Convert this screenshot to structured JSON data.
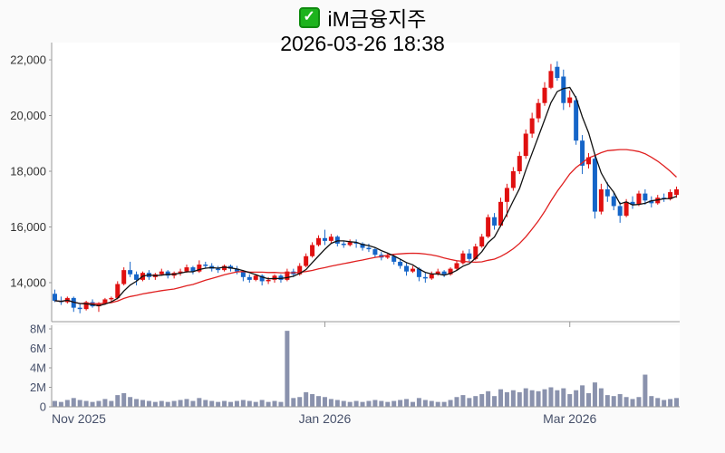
{
  "chart_data": {
    "type": "candlestick+volume",
    "title": "iM금융지주",
    "datetime": "2026-03-26 18:38",
    "legend": {
      "checkbox_state": "checked"
    },
    "colors": {
      "up_candle": "#e01010",
      "down_candle": "#1565c8",
      "volume_bar": "#8a92ad",
      "ma_short": "#111111",
      "ma_long": "#e02020",
      "axis_line": "#999999",
      "price_label": "#333333",
      "time_label": "#46506a",
      "plot_bg": "#ffffff",
      "page_bg": "#fafafa",
      "checkbox_green": "#1db31d"
    },
    "price_axis": {
      "min": 12600,
      "max": 22620,
      "ticks": [
        {
          "v": 22000,
          "label": "22,000"
        },
        {
          "v": 20000,
          "label": "20,000"
        },
        {
          "v": 18000,
          "label": "18,000"
        },
        {
          "v": 16000,
          "label": "16,000"
        },
        {
          "v": 14000,
          "label": "14,000"
        }
      ]
    },
    "volume_axis": {
      "max_millions": 8,
      "ticks": [
        {
          "v": 8,
          "label": "8M"
        },
        {
          "v": 6,
          "label": "6M"
        },
        {
          "v": 4,
          "label": "4M"
        },
        {
          "v": 2,
          "label": "2M"
        },
        {
          "v": 0,
          "label": "0"
        }
      ]
    },
    "x_ticks": [
      {
        "label": "Nov 2025",
        "index": 0,
        "anchor": "start"
      },
      {
        "label": "Jan 2026",
        "index": 43,
        "anchor": "middle"
      },
      {
        "label": "Mar 2026",
        "index": 82,
        "anchor": "middle"
      }
    ],
    "ma_short_period": 5,
    "ma_long_period": 20,
    "candles_format": [
      "open",
      "high",
      "low",
      "close",
      "volume_millions"
    ],
    "candles": [
      [
        13600,
        13750,
        13300,
        13350,
        0.6
      ],
      [
        13350,
        13500,
        13200,
        13300,
        0.5
      ],
      [
        13300,
        13500,
        13250,
        13450,
        0.7
      ],
      [
        13450,
        13500,
        12950,
        13100,
        0.9
      ],
      [
        13100,
        13250,
        12900,
        13050,
        0.7
      ],
      [
        13050,
        13350,
        13000,
        13300,
        0.6
      ],
      [
        13300,
        13400,
        13100,
        13150,
        0.5
      ],
      [
        13150,
        13300,
        12950,
        13250,
        0.6
      ],
      [
        13250,
        13450,
        13200,
        13400,
        0.8
      ],
      [
        13400,
        13500,
        13300,
        13450,
        0.6
      ],
      [
        13450,
        14050,
        13400,
        13950,
        1.2
      ],
      [
        13950,
        14550,
        13900,
        14450,
        1.4
      ],
      [
        14450,
        14750,
        14200,
        14300,
        1.0
      ],
      [
        14300,
        14400,
        13900,
        14100,
        0.8
      ],
      [
        14100,
        14400,
        14050,
        14350,
        0.7
      ],
      [
        14350,
        14450,
        14100,
        14200,
        0.6
      ],
      [
        14200,
        14350,
        14100,
        14300,
        0.5
      ],
      [
        14300,
        14500,
        14250,
        14400,
        0.6
      ],
      [
        14400,
        14450,
        14150,
        14250,
        0.5
      ],
      [
        14250,
        14400,
        14150,
        14350,
        0.6
      ],
      [
        14350,
        14500,
        14250,
        14400,
        0.7
      ],
      [
        14400,
        14650,
        14350,
        14550,
        0.8
      ],
      [
        14550,
        14600,
        14300,
        14400,
        0.6
      ],
      [
        14400,
        14800,
        14350,
        14650,
        0.9
      ],
      [
        14650,
        14750,
        14500,
        14600,
        0.7
      ],
      [
        14600,
        14700,
        14400,
        14500,
        0.6
      ],
      [
        14500,
        14600,
        14350,
        14450,
        0.5
      ],
      [
        14450,
        14650,
        14400,
        14600,
        0.6
      ],
      [
        14600,
        14650,
        14400,
        14500,
        0.5
      ],
      [
        14500,
        14600,
        14300,
        14400,
        0.6
      ],
      [
        14400,
        14450,
        14050,
        14200,
        0.7
      ],
      [
        14200,
        14300,
        14000,
        14100,
        0.6
      ],
      [
        14100,
        14300,
        14050,
        14250,
        0.5
      ],
      [
        14250,
        14300,
        13900,
        14050,
        0.7
      ],
      [
        14050,
        14200,
        13950,
        14100,
        0.5
      ],
      [
        14100,
        14300,
        14000,
        14250,
        0.6
      ],
      [
        14250,
        14300,
        14000,
        14100,
        0.5
      ],
      [
        14100,
        14500,
        14050,
        14400,
        7.8
      ],
      [
        14400,
        14500,
        14200,
        14300,
        0.9
      ],
      [
        14300,
        14700,
        14250,
        14600,
        1.0
      ],
      [
        14600,
        15050,
        14550,
        14950,
        1.5
      ],
      [
        14950,
        15450,
        14900,
        15350,
        1.3
      ],
      [
        15350,
        15700,
        15300,
        15600,
        1.1
      ],
      [
        15600,
        15900,
        15350,
        15500,
        1.0
      ],
      [
        15500,
        15750,
        15400,
        15650,
        0.8
      ],
      [
        15650,
        15700,
        15300,
        15400,
        0.7
      ],
      [
        15400,
        15500,
        15250,
        15350,
        0.6
      ],
      [
        15350,
        15550,
        15300,
        15450,
        0.5
      ],
      [
        15450,
        15550,
        15250,
        15400,
        0.6
      ],
      [
        15400,
        15450,
        15150,
        15250,
        0.5
      ],
      [
        15250,
        15400,
        15100,
        15200,
        0.6
      ],
      [
        15200,
        15250,
        14900,
        15000,
        0.7
      ],
      [
        15000,
        15100,
        14800,
        14900,
        0.6
      ],
      [
        14900,
        15050,
        14850,
        14950,
        0.5
      ],
      [
        14950,
        15000,
        14650,
        14750,
        0.6
      ],
      [
        14750,
        14850,
        14500,
        14600,
        0.7
      ],
      [
        14600,
        14700,
        14250,
        14400,
        0.8
      ],
      [
        14400,
        14600,
        14350,
        14500,
        0.5
      ],
      [
        14500,
        14550,
        14050,
        14200,
        0.9
      ],
      [
        14200,
        14350,
        14000,
        14150,
        0.7
      ],
      [
        14150,
        14400,
        14100,
        14300,
        0.6
      ],
      [
        14300,
        14500,
        14250,
        14400,
        0.5
      ],
      [
        14400,
        14450,
        14200,
        14300,
        0.5
      ],
      [
        14300,
        14550,
        14250,
        14500,
        0.7
      ],
      [
        14500,
        14800,
        14450,
        14700,
        1.0
      ],
      [
        14700,
        15150,
        14650,
        15050,
        1.2
      ],
      [
        15050,
        15200,
        14750,
        14850,
        0.9
      ],
      [
        14850,
        15400,
        14800,
        15300,
        1.1
      ],
      [
        15300,
        15750,
        15250,
        15650,
        1.3
      ],
      [
        15650,
        16450,
        15600,
        16350,
        1.6
      ],
      [
        16350,
        16500,
        15900,
        16050,
        1.1
      ],
      [
        16050,
        17050,
        16000,
        16900,
        1.8
      ],
      [
        16900,
        17550,
        16350,
        17400,
        1.5
      ],
      [
        17400,
        18150,
        17300,
        18000,
        1.7
      ],
      [
        18000,
        18700,
        17900,
        18550,
        1.5
      ],
      [
        18550,
        19500,
        18450,
        19350,
        1.9
      ],
      [
        19350,
        20100,
        19200,
        19900,
        1.7
      ],
      [
        19900,
        20600,
        19750,
        20450,
        1.6
      ],
      [
        20450,
        21200,
        20350,
        21000,
        1.8
      ],
      [
        21000,
        21850,
        20950,
        21600,
        2.0
      ],
      [
        21750,
        21950,
        21250,
        21350,
        1.7
      ],
      [
        21400,
        21650,
        20200,
        20450,
        1.9
      ],
      [
        20450,
        20900,
        20300,
        20650,
        1.3
      ],
      [
        20550,
        20700,
        18950,
        19100,
        1.7
      ],
      [
        19100,
        19300,
        17900,
        18200,
        2.2
      ],
      [
        18250,
        18650,
        18100,
        18500,
        1.4
      ],
      [
        18450,
        18550,
        16300,
        16550,
        2.5
      ],
      [
        16550,
        17550,
        16450,
        17350,
        1.9
      ],
      [
        17350,
        17600,
        16900,
        17100,
        1.2
      ],
      [
        17100,
        17250,
        16600,
        16750,
        1.1
      ],
      [
        16750,
        16900,
        16150,
        16400,
        1.3
      ],
      [
        16400,
        17000,
        16350,
        16900,
        1.0
      ],
      [
        16900,
        17100,
        16650,
        16800,
        0.8
      ],
      [
        16800,
        17300,
        16750,
        17200,
        1.0
      ],
      [
        17200,
        17350,
        16800,
        16950,
        3.3
      ],
      [
        16950,
        17100,
        16700,
        16850,
        1.1
      ],
      [
        16850,
        17150,
        16800,
        17050,
        0.9
      ],
      [
        17050,
        17200,
        16900,
        17000,
        0.7
      ],
      [
        17000,
        17350,
        16950,
        17250,
        0.8
      ],
      [
        17150,
        17450,
        17050,
        17350,
        0.9
      ]
    ]
  }
}
